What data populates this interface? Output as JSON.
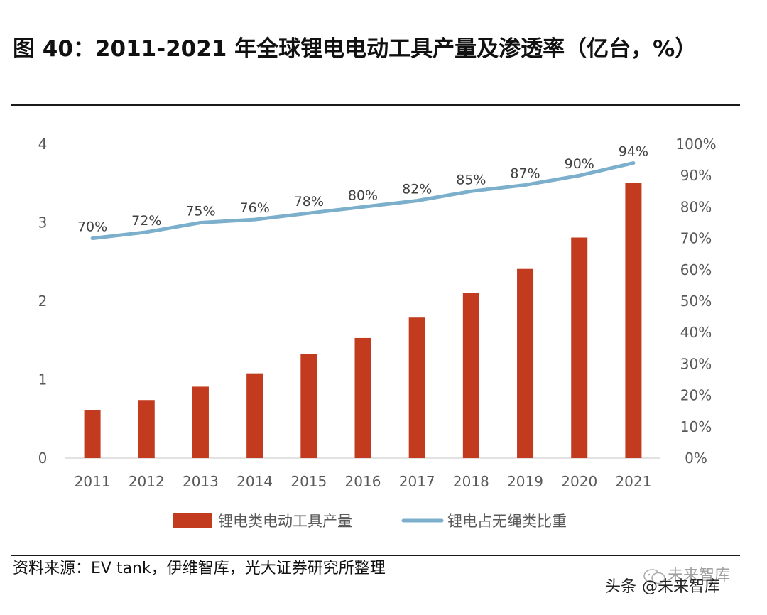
{
  "title": "图 40：2011-2021 年全球锂电电动工具产量及渗透率（亿台，%）",
  "source": "资料来源：EV tank，伊维智库，光大证券研究所整理",
  "watermark": {
    "prefix": "头条",
    "at": "@未来智库",
    "back": "未来智库",
    "icon": "wechat-icon"
  },
  "colors": {
    "bar": "#C23B1E",
    "line": "#7BAFCB",
    "axis_text": "#595959",
    "title": "#111111"
  },
  "chart_data": {
    "type": "bar+line",
    "categories": [
      "2011",
      "2012",
      "2013",
      "2014",
      "2015",
      "2016",
      "2017",
      "2018",
      "2019",
      "2020",
      "2021"
    ],
    "series": [
      {
        "name": "锂电类电动工具产量",
        "type": "bar",
        "axis": "left",
        "values": [
          0.61,
          0.74,
          0.91,
          1.08,
          1.33,
          1.53,
          1.79,
          2.1,
          2.41,
          2.81,
          3.51
        ]
      },
      {
        "name": "锂电占无绳类比重",
        "type": "line",
        "axis": "right",
        "values": [
          70,
          72,
          75,
          76,
          78,
          80,
          82,
          85,
          87,
          90,
          94
        ],
        "labels": [
          "70%",
          "72%",
          "75%",
          "76%",
          "78%",
          "80%",
          "82%",
          "85%",
          "87%",
          "90%",
          "94%"
        ]
      }
    ],
    "y_left": {
      "min": 0,
      "max": 4,
      "ticks": [
        "0",
        "1",
        "2",
        "3",
        "4"
      ]
    },
    "y_right": {
      "min": 0,
      "max": 100,
      "ticks": [
        "0%",
        "10%",
        "20%",
        "30%",
        "40%",
        "50%",
        "60%",
        "70%",
        "80%",
        "90%",
        "100%"
      ]
    },
    "grid": false,
    "legend": "bottom"
  }
}
